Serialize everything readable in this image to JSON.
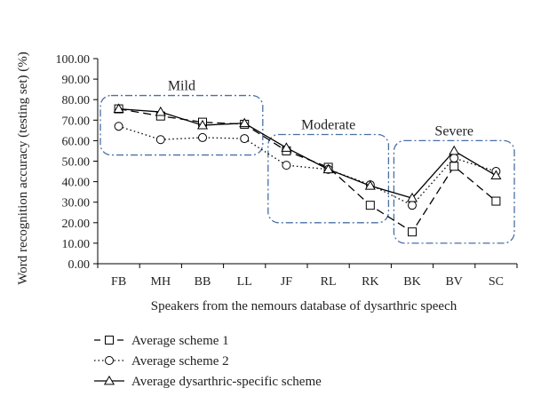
{
  "chart_data": {
    "type": "line",
    "xlabel": "Speakers from the nemours database of dysarthric speech",
    "ylabel": "Word recognition accuracy (testing set) (%)",
    "ylim": [
      0,
      100
    ],
    "y_ticks": [
      "0.00",
      "10.00",
      "20.00",
      "30.00",
      "40.00",
      "50.00",
      "60.00",
      "70.00",
      "80.00",
      "90.00",
      "100.00"
    ],
    "categories": [
      "FB",
      "MH",
      "BB",
      "LL",
      "JF",
      "RL",
      "RK",
      "BK",
      "BV",
      "SC"
    ],
    "series": [
      {
        "name": "Average scheme 1",
        "marker": "square",
        "line": "dashed",
        "values": [
          75.5,
          72.0,
          69.0,
          68.0,
          55.0,
          47.0,
          28.5,
          15.5,
          47.5,
          30.5
        ]
      },
      {
        "name": "Average scheme 2",
        "marker": "circle",
        "line": "dotted",
        "values": [
          67.0,
          60.5,
          61.5,
          61.0,
          48.0,
          46.0,
          38.5,
          28.5,
          51.5,
          45.0
        ]
      },
      {
        "name": "Average dysarthric-specific scheme",
        "marker": "triangle",
        "line": "solid",
        "values": [
          75.5,
          74.0,
          67.5,
          68.5,
          56.5,
          46.0,
          38.0,
          32.0,
          55.0,
          43.0
        ]
      }
    ],
    "groups": [
      {
        "label": "Mild",
        "from": "FB",
        "to": "LL",
        "y_low": 53,
        "y_high": 82
      },
      {
        "label": "Moderate",
        "from": "JF",
        "to": "RK",
        "y_low": 20,
        "y_high": 63
      },
      {
        "label": "Severe",
        "from": "BK",
        "to": "SC",
        "y_low": 10,
        "y_high": 60
      }
    ],
    "legend_position": "bottom-left",
    "grid": false,
    "colors": {
      "lines": "#000000",
      "group_box": "#4a6fa5"
    }
  }
}
